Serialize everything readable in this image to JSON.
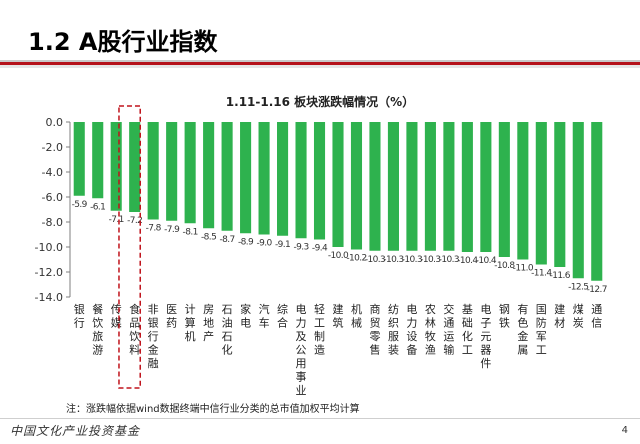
{
  "page": {
    "title": "1.2 A股行业指数",
    "footnote": "注：涨跌幅依据wind数据终端中信行业分类的总市值加权平均计算",
    "logo": "中国文化产业投资基金",
    "page_number": "4"
  },
  "colors": {
    "bar": "#2eb24e",
    "accent": "#b5121b",
    "highlight_box": "#c0121b"
  },
  "chart_data": {
    "type": "bar",
    "title": "1.11-1.16 板块涨跌幅情况（%）",
    "xlabel": "",
    "ylabel": "",
    "ylim": [
      -14,
      0
    ],
    "yticks": [
      "0.0",
      "-2.0",
      "-4.0",
      "-6.0",
      "-8.0",
      "-10.0",
      "-12.0",
      "-14.0"
    ],
    "grid": false,
    "legend": "none",
    "highlight_category": "食品饮料",
    "categories": [
      "银行",
      "餐饮旅游",
      "传媒",
      "食品饮料",
      "非银行金融",
      "医药",
      "计算机",
      "房地产",
      "石油石化",
      "家电",
      "汽车",
      "综合",
      "电力及公用事业",
      "轻工制造",
      "建筑",
      "机械",
      "商贸零售",
      "纺织服装",
      "电力设备",
      "农林牧渔",
      "交通运输",
      "基础化工",
      "电子元器件",
      "钢铁",
      "有色金属",
      "国防军工",
      "建材",
      "煤炭",
      "通信"
    ],
    "values": [
      -5.9,
      -6.1,
      -7.1,
      -7.2,
      -7.8,
      -7.9,
      -8.1,
      -8.5,
      -8.7,
      -8.9,
      -9.0,
      -9.1,
      -9.3,
      -9.4,
      -10.0,
      -10.2,
      -10.3,
      -10.3,
      -10.3,
      -10.3,
      -10.3,
      -10.4,
      -10.4,
      -10.8,
      -11.0,
      -11.4,
      -11.6,
      -12.5,
      -12.7
    ],
    "data_labels": [
      "-5.9",
      "-6.1",
      "-7.1",
      "-7.2",
      "-7.8",
      "-7.9",
      "-8.1",
      "-8.5",
      "-8.7",
      "-8.9",
      "-9.0",
      "-9.1",
      "-9.3",
      "-9.4",
      "-10.0",
      "-10.2",
      "-10.3",
      "-10.3",
      "-10.3",
      "-10.3",
      "-10.3",
      "-10.4",
      "-10.4",
      "-10.8",
      "-11.0",
      "-11.4",
      "-11.6",
      "-12.5",
      "-12.7"
    ]
  }
}
